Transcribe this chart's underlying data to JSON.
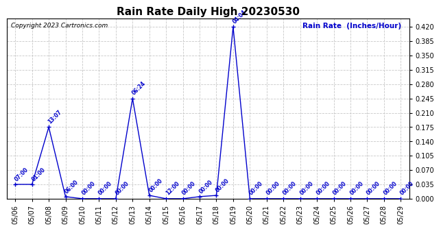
{
  "title": "Rain Rate Daily High 20230530",
  "ylabel": "Rain Rate  (Inches/Hour)",
  "copyright": "Copyright 2023 Cartronics.com",
  "line_color": "#0000cc",
  "background_color": "#ffffff",
  "grid_color": "#c8c8c8",
  "ylim": [
    0.0,
    0.44
  ],
  "yticks": [
    0.0,
    0.035,
    0.07,
    0.105,
    0.14,
    0.175,
    0.21,
    0.245,
    0.28,
    0.315,
    0.35,
    0.385,
    0.42
  ],
  "dates": [
    "05/06",
    "05/07",
    "05/08",
    "05/09",
    "05/10",
    "05/11",
    "05/12",
    "05/13",
    "05/14",
    "05/15",
    "05/16",
    "05/17",
    "05/18",
    "05/19",
    "05/20",
    "05/21",
    "05/22",
    "05/23",
    "05/24",
    "05/25",
    "05/26",
    "05/27",
    "05/28",
    "05/29"
  ],
  "x_indices": [
    0,
    1,
    2,
    3,
    4,
    5,
    6,
    7,
    8,
    9,
    10,
    11,
    12,
    13,
    14,
    15,
    16,
    17,
    18,
    19,
    20,
    21,
    22,
    23
  ],
  "values": [
    0.035,
    0.035,
    0.175,
    0.005,
    0.0,
    0.0,
    0.0,
    0.245,
    0.008,
    0.0,
    0.0,
    0.005,
    0.008,
    0.42,
    0.0,
    0.0,
    0.0,
    0.0,
    0.0,
    0.0,
    0.0,
    0.0,
    0.0,
    0.0
  ],
  "annotations": [
    {
      "idx": 0,
      "label": "07:00"
    },
    {
      "idx": 1,
      "label": "01:00"
    },
    {
      "idx": 2,
      "label": "13:07"
    },
    {
      "idx": 3,
      "label": "06:00"
    },
    {
      "idx": 4,
      "label": "00:00"
    },
    {
      "idx": 5,
      "label": "00:00"
    },
    {
      "idx": 6,
      "label": "00:00"
    },
    {
      "idx": 7,
      "label": "06:24"
    },
    {
      "idx": 8,
      "label": "00:00"
    },
    {
      "idx": 9,
      "label": "12:00"
    },
    {
      "idx": 10,
      "label": "00:00"
    },
    {
      "idx": 11,
      "label": "00:00"
    },
    {
      "idx": 12,
      "label": "00:00"
    },
    {
      "idx": 13,
      "label": "04:04"
    },
    {
      "idx": 14,
      "label": "00:00"
    },
    {
      "idx": 15,
      "label": "00:00"
    },
    {
      "idx": 16,
      "label": "00:00"
    },
    {
      "idx": 17,
      "label": "00:00"
    },
    {
      "idx": 18,
      "label": "00:00"
    },
    {
      "idx": 19,
      "label": "00:00"
    },
    {
      "idx": 20,
      "label": "00:00"
    },
    {
      "idx": 21,
      "label": "00:00"
    },
    {
      "idx": 22,
      "label": "00:00"
    },
    {
      "idx": 23,
      "label": "00:00"
    }
  ]
}
